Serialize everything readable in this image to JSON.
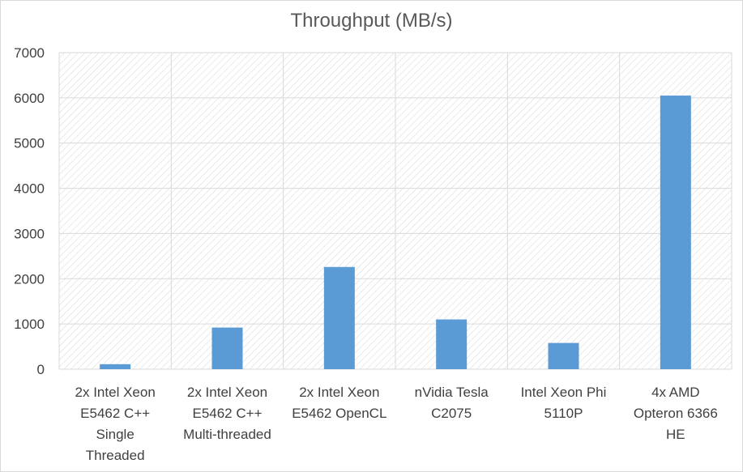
{
  "chart_data": {
    "type": "bar",
    "title": "Throughput (MB/s)",
    "xlabel": "",
    "ylabel": "",
    "ylim": [
      0,
      7000
    ],
    "yticks": [
      0,
      1000,
      2000,
      3000,
      4000,
      5000,
      6000,
      7000
    ],
    "categories": [
      [
        "2x Intel Xeon",
        "E5462 C++",
        "Single",
        "Threaded"
      ],
      [
        "2x Intel Xeon",
        "E5462 C++",
        "Multi-threaded"
      ],
      [
        "2x Intel Xeon",
        "E5462 OpenCL"
      ],
      [
        "nVidia Tesla",
        "C2075"
      ],
      [
        "Intel Xeon Phi",
        "5110P"
      ],
      [
        "4x AMD",
        "Opteron 6366",
        "HE"
      ]
    ],
    "values": [
      110,
      920,
      2260,
      1100,
      580,
      6050
    ],
    "grid": true,
    "legend": "none",
    "colors": {
      "bar": "#5b9bd5",
      "grid": "#d9d9d9",
      "hatch": "#d0d0d0",
      "text": "#404040",
      "title": "#595959"
    }
  }
}
